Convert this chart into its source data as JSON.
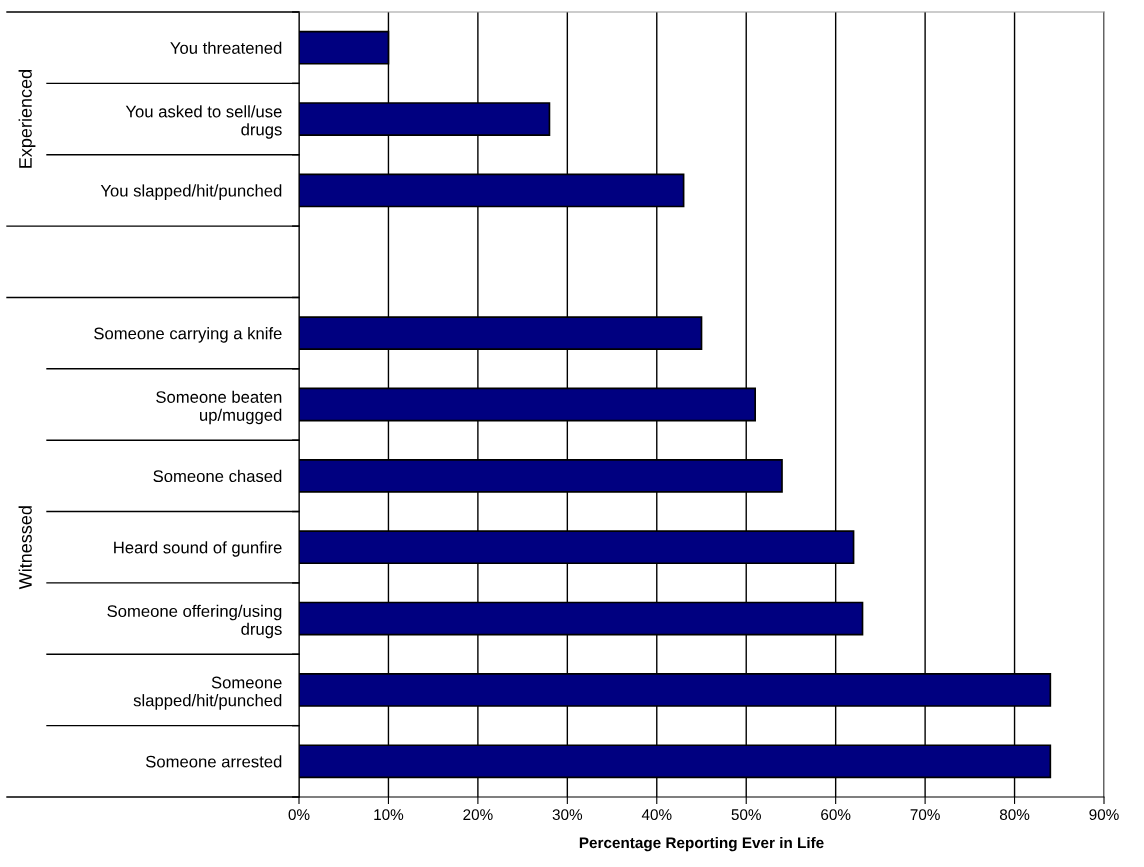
{
  "chart_data": {
    "type": "bar",
    "orientation": "horizontal",
    "xlabel": "Percentage Reporting Ever in Life",
    "categories": [
      "You threatened",
      "You asked to sell/use\ndrugs",
      "You slapped/hit/punched",
      null,
      "Someone carrying a knife",
      "Someone beaten\nup/mugged",
      "Someone chased",
      "Heard sound of gunfire",
      "Someone offering/using\ndrugs",
      "Someone\nslapped/hit/punched",
      "Someone arrested"
    ],
    "values": [
      10,
      28,
      43,
      null,
      45,
      51,
      54,
      62,
      63,
      84,
      84
    ],
    "color": "#000080",
    "xlim": [
      0,
      90
    ],
    "xticks": [
      {
        "value": 0,
        "label": "0%"
      },
      {
        "value": 10,
        "label": "10%"
      },
      {
        "value": 20,
        "label": "20%"
      },
      {
        "value": 30,
        "label": "30%"
      },
      {
        "value": 40,
        "label": "40%"
      },
      {
        "value": 50,
        "label": "50%"
      },
      {
        "value": 60,
        "label": "60%"
      },
      {
        "value": 70,
        "label": "70%"
      },
      {
        "value": 80,
        "label": "80%"
      },
      {
        "value": 90,
        "label": "90%"
      }
    ],
    "grid": "x",
    "annotations": [
      "Experienced",
      "Witnessed"
    ]
  }
}
